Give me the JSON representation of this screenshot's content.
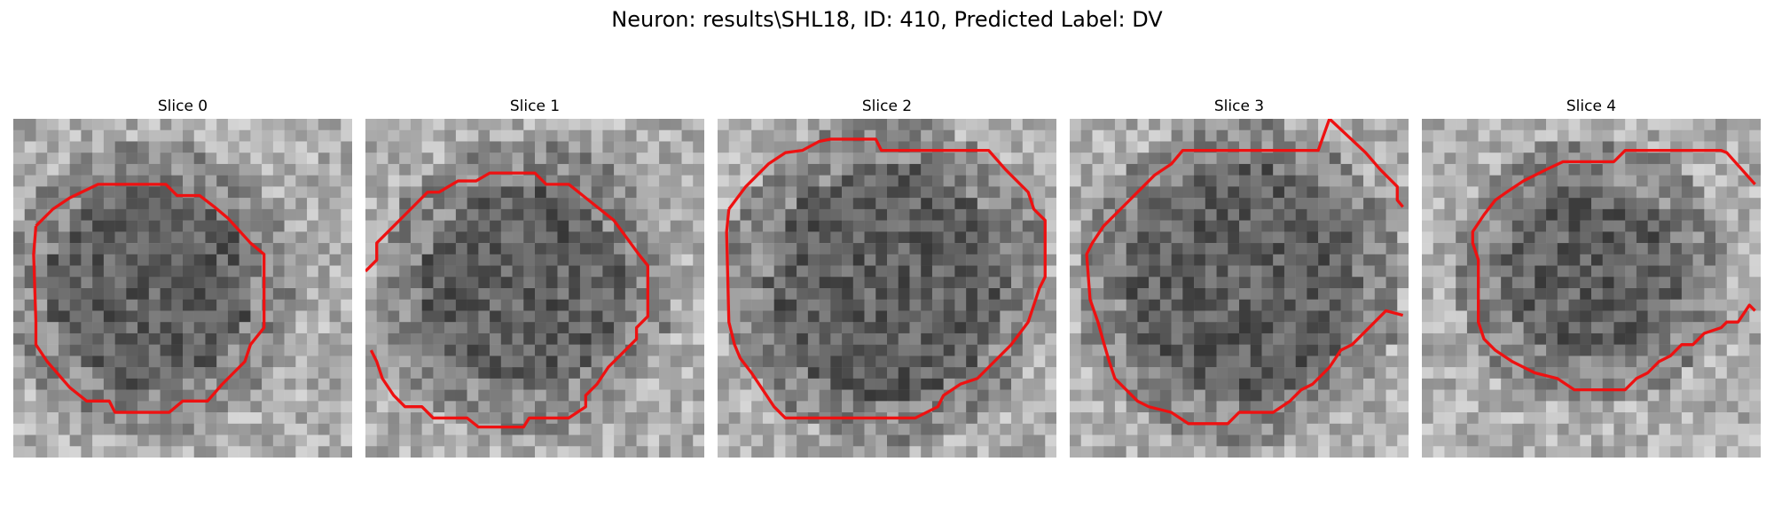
{
  "figure": {
    "title": "Neuron: results\\SHL18, ID: 410, Predicted Label: DV"
  },
  "slices": [
    {
      "title": "Slice 0"
    },
    {
      "title": "Slice 1"
    },
    {
      "title": "Slice 2"
    },
    {
      "title": "Slice 3"
    },
    {
      "title": "Slice 4"
    }
  ],
  "colors": {
    "contour": "#ee1111",
    "image_colormap": "grayscale"
  }
}
